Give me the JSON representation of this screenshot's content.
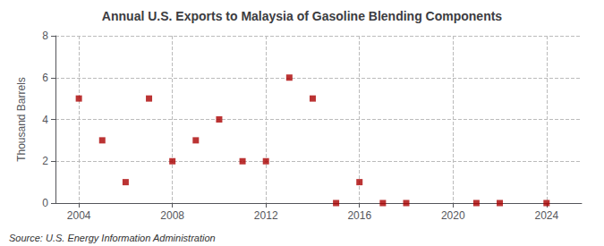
{
  "chart_data": {
    "type": "scatter",
    "title": "Annual U.S. Exports to Malaysia of Gasoline Blending Components",
    "ylabel": "Thousand Barrels",
    "annotations": [
      "Source: U.S. Energy Information Administration"
    ],
    "x": [
      2004,
      2005,
      2006,
      2007,
      2008,
      2009,
      2010,
      2011,
      2012,
      2013,
      2014,
      2015,
      2016,
      2017,
      2018,
      2021,
      2022,
      2024
    ],
    "values": [
      5,
      3,
      1,
      5,
      2,
      3,
      4,
      2,
      2,
      6,
      5,
      0,
      1,
      0,
      0,
      0,
      0,
      0
    ],
    "color": "#aa0000",
    "marker": "square",
    "xlim": [
      2003,
      2025.5
    ],
    "ylim": [
      0,
      8
    ],
    "xticks": [
      2004,
      2008,
      2012,
      2016,
      2020,
      2024
    ],
    "yticks": [
      0,
      2,
      4,
      6,
      8
    ],
    "grid": true
  }
}
